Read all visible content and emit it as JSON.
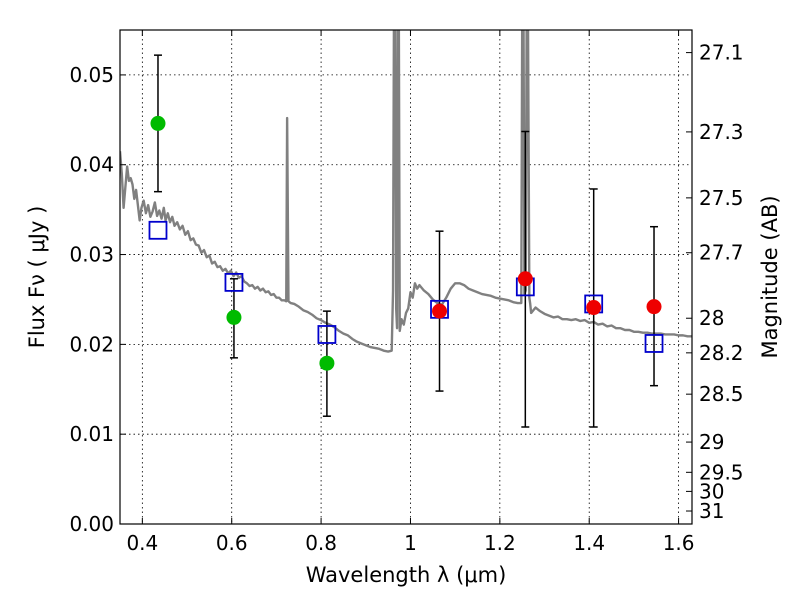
{
  "chart_data": {
    "type": "scatter",
    "xlabel": "Wavelength  λ (μm)",
    "ylabel": "Flux  Fν  ( μJy )",
    "ylabel_right": "Magnitude (AB)",
    "xlim": [
      0.35,
      1.63
    ],
    "ylim": [
      0.0,
      0.055
    ],
    "grid": true,
    "x_ticks": [
      {
        "value": 0.4,
        "label": "0.4"
      },
      {
        "value": 0.6,
        "label": "0.6"
      },
      {
        "value": 0.8,
        "label": "0.8"
      },
      {
        "value": 1.0,
        "label": "1"
      },
      {
        "value": 1.2,
        "label": "1.2"
      },
      {
        "value": 1.4,
        "label": "1.4"
      },
      {
        "value": 1.6,
        "label": "1.6"
      }
    ],
    "y_ticks": [
      {
        "value": 0.0,
        "label": "0.00"
      },
      {
        "value": 0.01,
        "label": "0.01"
      },
      {
        "value": 0.02,
        "label": "0.02"
      },
      {
        "value": 0.03,
        "label": "0.03"
      },
      {
        "value": 0.04,
        "label": "0.04"
      },
      {
        "value": 0.05,
        "label": "0.05"
      }
    ],
    "right_ticks": [
      {
        "mag": 27.1,
        "label": "27.1"
      },
      {
        "mag": 27.3,
        "label": "27.3"
      },
      {
        "mag": 27.5,
        "label": "27.5"
      },
      {
        "mag": 27.7,
        "label": "27.7"
      },
      {
        "mag": 28.0,
        "label": "28"
      },
      {
        "mag": 28.2,
        "label": "28.2"
      },
      {
        "mag": 28.5,
        "label": "28.5"
      },
      {
        "mag": 29.0,
        "label": "29"
      },
      {
        "mag": 29.5,
        "label": "29.5"
      },
      {
        "mag": 30.0,
        "label": "30"
      },
      {
        "mag": 31.0,
        "label": "31"
      }
    ],
    "series": [
      {
        "name": "model-spectrum",
        "kind": "line",
        "color": "#808080",
        "points": [
          [
            0.35,
            0.0415
          ],
          [
            0.354,
            0.039
          ],
          [
            0.358,
            0.0352
          ],
          [
            0.362,
            0.0375
          ],
          [
            0.366,
            0.0398
          ],
          [
            0.37,
            0.0382
          ],
          [
            0.374,
            0.0385
          ],
          [
            0.378,
            0.0378
          ],
          [
            0.382,
            0.0362
          ],
          [
            0.386,
            0.0372
          ],
          [
            0.39,
            0.0355
          ],
          [
            0.394,
            0.0338
          ],
          [
            0.398,
            0.0352
          ],
          [
            0.403,
            0.036
          ],
          [
            0.408,
            0.0346
          ],
          [
            0.413,
            0.0355
          ],
          [
            0.418,
            0.0342
          ],
          [
            0.423,
            0.0348
          ],
          [
            0.428,
            0.0358
          ],
          [
            0.433,
            0.0343
          ],
          [
            0.438,
            0.0349
          ],
          [
            0.443,
            0.034
          ],
          [
            0.448,
            0.0352
          ],
          [
            0.452,
            0.0338
          ],
          [
            0.457,
            0.0346
          ],
          [
            0.462,
            0.0336
          ],
          [
            0.467,
            0.0342
          ],
          [
            0.472,
            0.0332
          ],
          [
            0.478,
            0.0336
          ],
          [
            0.484,
            0.0328
          ],
          [
            0.49,
            0.0332
          ],
          [
            0.496,
            0.0322
          ],
          [
            0.502,
            0.0326
          ],
          [
            0.508,
            0.0316
          ],
          [
            0.514,
            0.0318
          ],
          [
            0.52,
            0.0311
          ],
          [
            0.526,
            0.031
          ],
          [
            0.532,
            0.0302
          ],
          [
            0.538,
            0.0305
          ],
          [
            0.544,
            0.0297
          ],
          [
            0.55,
            0.0299
          ],
          [
            0.556,
            0.029
          ],
          [
            0.562,
            0.0292
          ],
          [
            0.568,
            0.0286
          ],
          [
            0.574,
            0.0287
          ],
          [
            0.58,
            0.0282
          ],
          [
            0.586,
            0.0284
          ],
          [
            0.592,
            0.0279
          ],
          [
            0.598,
            0.0282
          ],
          [
            0.604,
            0.0276
          ],
          [
            0.61,
            0.028
          ],
          [
            0.616,
            0.0274
          ],
          [
            0.622,
            0.0276
          ],
          [
            0.628,
            0.027
          ],
          [
            0.634,
            0.0268
          ],
          [
            0.64,
            0.0265
          ],
          [
            0.646,
            0.0266
          ],
          [
            0.652,
            0.0262
          ],
          [
            0.658,
            0.0264
          ],
          [
            0.664,
            0.026
          ],
          [
            0.67,
            0.0262
          ],
          [
            0.676,
            0.0258
          ],
          [
            0.682,
            0.0259
          ],
          [
            0.688,
            0.0255
          ],
          [
            0.694,
            0.0256
          ],
          [
            0.7,
            0.0252
          ],
          [
            0.706,
            0.0252
          ],
          [
            0.712,
            0.0249
          ],
          [
            0.718,
            0.0249
          ],
          [
            0.722,
            0.0248
          ],
          [
            0.724,
            0.0452
          ],
          [
            0.727,
            0.0248
          ],
          [
            0.732,
            0.0246
          ],
          [
            0.74,
            0.0245
          ],
          [
            0.75,
            0.0242
          ],
          [
            0.76,
            0.0238
          ],
          [
            0.77,
            0.0236
          ],
          [
            0.78,
            0.0233
          ],
          [
            0.79,
            0.0229
          ],
          [
            0.8,
            0.0227
          ],
          [
            0.81,
            0.0224
          ],
          [
            0.82,
            0.0222
          ],
          [
            0.83,
            0.0219
          ],
          [
            0.84,
            0.0215
          ],
          [
            0.85,
            0.0212
          ],
          [
            0.86,
            0.021
          ],
          [
            0.87,
            0.0206
          ],
          [
            0.88,
            0.0203
          ],
          [
            0.89,
            0.0201
          ],
          [
            0.9,
            0.0199
          ],
          [
            0.91,
            0.0197
          ],
          [
            0.92,
            0.0196
          ],
          [
            0.93,
            0.0195
          ],
          [
            0.94,
            0.0193
          ],
          [
            0.95,
            0.0192
          ],
          [
            0.958,
            0.0193
          ],
          [
            0.961,
            0.026
          ],
          [
            0.963,
            0.056
          ],
          [
            0.966,
            0.056
          ],
          [
            0.968,
            0.024
          ],
          [
            0.97,
            0.0218
          ],
          [
            0.972,
            0.056
          ],
          [
            0.974,
            0.056
          ],
          [
            0.976,
            0.0215
          ],
          [
            0.98,
            0.0228
          ],
          [
            0.985,
            0.0222
          ],
          [
            0.99,
            0.0235
          ],
          [
            0.995,
            0.024
          ],
          [
            1.0,
            0.0258
          ],
          [
            1.005,
            0.0252
          ],
          [
            1.01,
            0.0268
          ],
          [
            1.015,
            0.0262
          ],
          [
            1.02,
            0.0266
          ],
          [
            1.03,
            0.026
          ],
          [
            1.04,
            0.0256
          ],
          [
            1.05,
            0.025
          ],
          [
            1.06,
            0.0246
          ],
          [
            1.07,
            0.0244
          ],
          [
            1.08,
            0.0252
          ],
          [
            1.09,
            0.0262
          ],
          [
            1.1,
            0.0268
          ],
          [
            1.11,
            0.0268
          ],
          [
            1.12,
            0.0266
          ],
          [
            1.13,
            0.0262
          ],
          [
            1.14,
            0.026
          ],
          [
            1.15,
            0.0258
          ],
          [
            1.16,
            0.0256
          ],
          [
            1.17,
            0.0255
          ],
          [
            1.18,
            0.0254
          ],
          [
            1.19,
            0.0252
          ],
          [
            1.2,
            0.0251
          ],
          [
            1.21,
            0.025
          ],
          [
            1.22,
            0.0249
          ],
          [
            1.23,
            0.0247
          ],
          [
            1.24,
            0.0246
          ],
          [
            1.248,
            0.0246
          ],
          [
            1.25,
            0.056
          ],
          [
            1.253,
            0.056
          ],
          [
            1.255,
            0.0256
          ],
          [
            1.258,
            0.026
          ],
          [
            1.26,
            0.056
          ],
          [
            1.263,
            0.056
          ],
          [
            1.266,
            0.0252
          ],
          [
            1.268,
            0.0245
          ],
          [
            1.27,
            0.0235
          ],
          [
            1.275,
            0.0238
          ],
          [
            1.28,
            0.0241
          ],
          [
            1.29,
            0.0237
          ],
          [
            1.3,
            0.0234
          ],
          [
            1.31,
            0.0232
          ],
          [
            1.32,
            0.023
          ],
          [
            1.33,
            0.0231
          ],
          [
            1.34,
            0.0228
          ],
          [
            1.35,
            0.0228
          ],
          [
            1.36,
            0.0227
          ],
          [
            1.37,
            0.0228
          ],
          [
            1.38,
            0.0226
          ],
          [
            1.39,
            0.0227
          ],
          [
            1.4,
            0.0224
          ],
          [
            1.41,
            0.0225
          ],
          [
            1.42,
            0.0222
          ],
          [
            1.43,
            0.0223
          ],
          [
            1.44,
            0.022
          ],
          [
            1.45,
            0.0221
          ],
          [
            1.46,
            0.0218
          ],
          [
            1.47,
            0.0218
          ],
          [
            1.48,
            0.0216
          ],
          [
            1.49,
            0.0216
          ],
          [
            1.5,
            0.0214
          ],
          [
            1.51,
            0.0214
          ],
          [
            1.52,
            0.0213
          ],
          [
            1.53,
            0.0213
          ],
          [
            1.54,
            0.0212
          ],
          [
            1.55,
            0.0212
          ],
          [
            1.56,
            0.0212
          ],
          [
            1.57,
            0.0211
          ],
          [
            1.58,
            0.0211
          ],
          [
            1.59,
            0.0211
          ],
          [
            1.6,
            0.021
          ],
          [
            1.61,
            0.021
          ],
          [
            1.62,
            0.0209
          ],
          [
            1.63,
            0.0209
          ]
        ]
      },
      {
        "name": "model-photometry",
        "kind": "square",
        "color": "#0000cc",
        "points": [
          [
            0.435,
            0.0327
          ],
          [
            0.605,
            0.0269
          ],
          [
            0.813,
            0.0211
          ],
          [
            1.065,
            0.0239
          ],
          [
            1.257,
            0.0264
          ],
          [
            1.41,
            0.0245
          ],
          [
            1.545,
            0.0201
          ]
        ]
      },
      {
        "name": "optical-detections",
        "kind": "circle",
        "color": "#00bb00",
        "points": [
          [
            0.435,
            0.0446
          ],
          [
            0.605,
            0.023
          ],
          [
            0.813,
            0.0179
          ]
        ]
      },
      {
        "name": "nir-detections",
        "kind": "circle",
        "color": "#ee0000",
        "points": [
          [
            1.065,
            0.0237
          ],
          [
            1.257,
            0.0273
          ],
          [
            1.41,
            0.0241
          ],
          [
            1.545,
            0.0242
          ]
        ]
      }
    ],
    "error_bars": [
      {
        "x": 0.435,
        "low": 0.037,
        "high": 0.0522
      },
      {
        "x": 0.605,
        "low": 0.0185,
        "high": 0.0273
      },
      {
        "x": 0.813,
        "low": 0.012,
        "high": 0.0237
      },
      {
        "x": 1.065,
        "low": 0.0148,
        "high": 0.0326
      },
      {
        "x": 1.257,
        "low": 0.0108,
        "high": 0.0437
      },
      {
        "x": 1.41,
        "low": 0.0108,
        "high": 0.0373
      },
      {
        "x": 1.545,
        "low": 0.0154,
        "high": 0.0331
      }
    ]
  }
}
